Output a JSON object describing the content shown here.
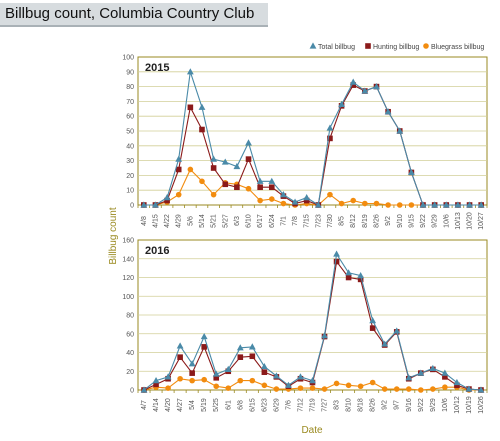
{
  "header": {
    "title": "Billbug count, Columbia Country Club"
  },
  "colors": {
    "header_bg": "#d7dcdf",
    "plot_border": "#9a8a20",
    "grid": "#d2cf98",
    "total": "#4a8aa8",
    "hunting": "#8b1a1a",
    "bluegrass": "#f28c0f",
    "axis_title": "#9a8a20"
  },
  "chart_data": {
    "type": "line",
    "xlabel": "Date",
    "ylabel": "Billbug count",
    "legend": {
      "placement": "top-right",
      "entries": [
        {
          "label": "Total billbug",
          "marker": "triangle",
          "color": "#4a8aa8"
        },
        {
          "label": "Hunting billbug",
          "marker": "square",
          "color": "#8b1a1a"
        },
        {
          "label": "Bluegrass billbug",
          "marker": "circle",
          "color": "#f28c0f"
        }
      ]
    },
    "panels": [
      {
        "label": "2015",
        "ylim": [
          0,
          100
        ],
        "yticks": [
          0,
          10,
          20,
          30,
          40,
          50,
          60,
          70,
          80,
          90,
          100
        ],
        "grid": true,
        "categories": [
          "4/8",
          "4/15",
          "4/22",
          "4/29",
          "5/6",
          "5/14",
          "5/21",
          "5/27",
          "6/3",
          "6/10",
          "6/17",
          "6/24",
          "7/1",
          "7/8",
          "7/15",
          "7/23",
          "7/30",
          "8/5",
          "8/12",
          "8/19",
          "8/26",
          "9/2",
          "9/10",
          "9/15",
          "9/22",
          "9/29",
          "10/6",
          "10/13",
          "10/20",
          "10/27"
        ],
        "series": [
          {
            "name": "Total billbug",
            "values": [
              0,
              0,
              5,
              31,
              90,
              66,
              31,
              29,
              26,
              42,
              16,
              16,
              7,
              2,
              5,
              0,
              52,
              68,
              83,
              77,
              80,
              63,
              50,
              22,
              0,
              0,
              0,
              0,
              0,
              0
            ]
          },
          {
            "name": "Hunting billbug",
            "values": [
              0,
              0,
              3,
              24,
              66,
              51,
              25,
              14,
              12,
              31,
              12,
              12,
              6,
              1,
              3,
              0,
              45,
              67,
              81,
              77,
              80,
              63,
              50,
              22,
              0,
              0,
              0,
              0,
              0,
              0
            ]
          },
          {
            "name": "Bluegrass billbug",
            "values": [
              0,
              0,
              2,
              7,
              24,
              16,
              7,
              15,
              14,
              11,
              3,
              4,
              1,
              0,
              1,
              0,
              7,
              1,
              3,
              1,
              1,
              0,
              0,
              0,
              0,
              0,
              0,
              0,
              0,
              0
            ]
          }
        ]
      },
      {
        "label": "2016",
        "ylim": [
          0,
          160
        ],
        "yticks": [
          0,
          20,
          40,
          60,
          80,
          100,
          120,
          140,
          160
        ],
        "grid": true,
        "categories": [
          "4/7",
          "4/14",
          "4/20",
          "4/27",
          "5/4",
          "5/19",
          "5/25",
          "6/1",
          "6/8",
          "6/15",
          "6/23",
          "6/29",
          "7/6",
          "7/12",
          "7/19",
          "7/27",
          "8/3",
          "8/10",
          "8/18",
          "8/26",
          "9/2",
          "9/7",
          "9/16",
          "9/22",
          "9/29",
          "10/6",
          "10/12",
          "10/19",
          "10/26"
        ],
        "series": [
          {
            "name": "Total billbug",
            "values": [
              0,
              10,
              14,
              47,
              28,
              57,
              17,
              22,
              45,
              46,
              25,
              15,
              5,
              14,
              10,
              58,
              145,
              125,
              122,
              74,
              49,
              63,
              13,
              18,
              23,
              18,
              8,
              1,
              0
            ]
          },
          {
            "name": "Hunting billbug",
            "values": [
              0,
              6,
              12,
              35,
              18,
              46,
              13,
              20,
              35,
              36,
              19,
              14,
              4,
              12,
              8,
              57,
              137,
              120,
              118,
              66,
              48,
              62,
              12,
              18,
              22,
              14,
              5,
              1,
              0
            ]
          },
          {
            "name": "Bluegrass billbug",
            "values": [
              0,
              3,
              2,
              12,
              10,
              11,
              4,
              2,
              10,
              10,
              5,
              1,
              1,
              2,
              2,
              1,
              7,
              5,
              4,
              8,
              1,
              1,
              1,
              0,
              1,
              3,
              3,
              0,
              0
            ]
          }
        ]
      }
    ]
  }
}
